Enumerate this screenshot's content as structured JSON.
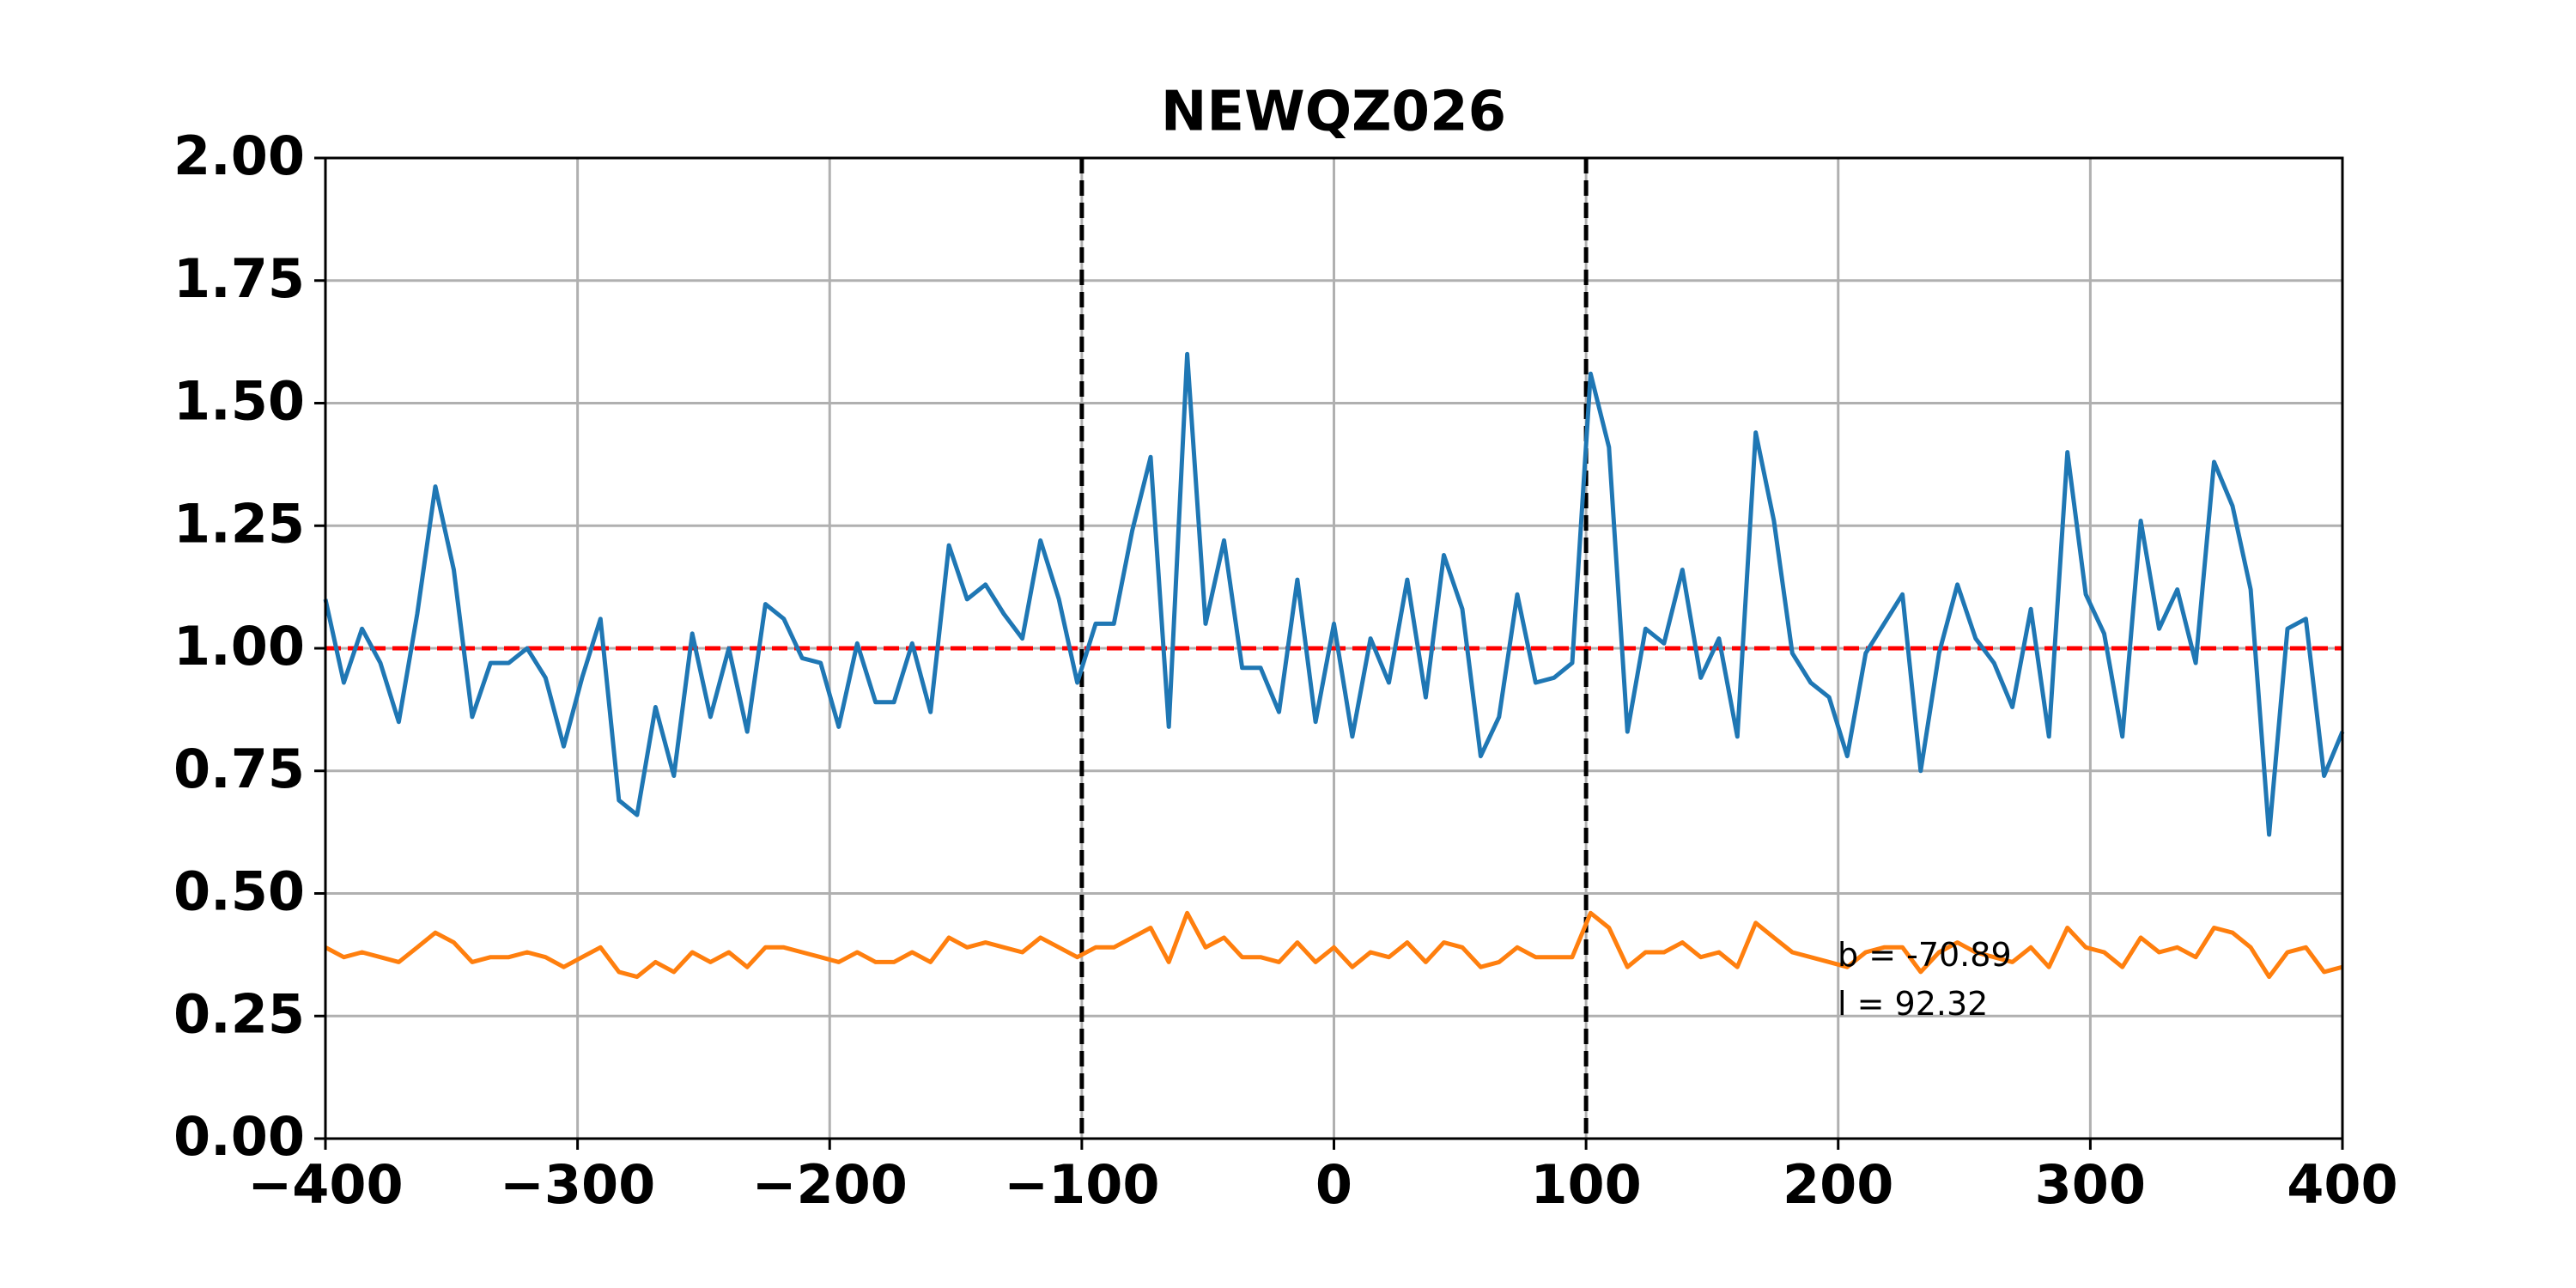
{
  "chart_data": {
    "type": "line",
    "title": "NEWQZ026",
    "x": [
      -400,
      -392.7,
      -385.5,
      -378.2,
      -370.9,
      -363.6,
      -356.4,
      -349.1,
      -341.8,
      -334.5,
      -327.3,
      -320,
      -312.7,
      -305.5,
      -298.2,
      -290.9,
      -283.6,
      -276.4,
      -269.1,
      -261.8,
      -254.5,
      -247.3,
      -240,
      -232.7,
      -225.5,
      -218.2,
      -210.9,
      -203.6,
      -196.4,
      -189.1,
      -181.8,
      -174.5,
      -167.3,
      -160,
      -152.7,
      -145.5,
      -138.2,
      -130.9,
      -123.6,
      -116.4,
      -109.1,
      -101.8,
      -94.5,
      -87.3,
      -80,
      -72.7,
      -65.5,
      -58.2,
      -50.9,
      -43.6,
      -36.4,
      -29.1,
      -21.8,
      -14.5,
      -7.3,
      0,
      7.3,
      14.5,
      21.8,
      29.1,
      36.4,
      43.6,
      50.9,
      58.2,
      65.5,
      72.7,
      80,
      87.3,
      94.5,
      101.8,
      109.1,
      116.4,
      123.6,
      130.9,
      138.2,
      145.5,
      152.7,
      160,
      167.3,
      174.5,
      181.8,
      189.1,
      196.4,
      203.6,
      210.9,
      218.2,
      225.5,
      232.7,
      240,
      247.3,
      254.5,
      261.8,
      269.1,
      276.4,
      283.6,
      290.9,
      298.2,
      305.5,
      312.7,
      320,
      327.3,
      334.5,
      341.8,
      349.1,
      356.4,
      363.6,
      370.9,
      378.2,
      385.5,
      392.7,
      400
    ],
    "series": [
      {
        "color": "#1f77b4",
        "values": [
          1.1,
          0.93,
          1.04,
          0.97,
          0.85,
          1.07,
          1.33,
          1.16,
          0.86,
          0.97,
          0.97,
          1.0,
          0.94,
          0.8,
          0.94,
          1.06,
          0.69,
          0.66,
          0.88,
          0.74,
          1.03,
          0.86,
          1.0,
          0.83,
          1.09,
          1.06,
          0.98,
          0.97,
          0.84,
          1.01,
          0.89,
          0.89,
          1.01,
          0.87,
          1.21,
          1.1,
          1.13,
          1.07,
          1.02,
          1.22,
          1.1,
          0.93,
          1.05,
          1.05,
          1.24,
          1.39,
          0.84,
          1.6,
          1.05,
          1.22,
          0.96,
          0.96,
          0.87,
          1.14,
          0.85,
          1.05,
          0.82,
          1.02,
          0.93,
          1.14,
          0.9,
          1.19,
          1.08,
          0.78,
          0.86,
          1.11,
          0.93,
          0.94,
          0.97,
          1.56,
          1.41,
          0.83,
          1.04,
          1.01,
          1.16,
          0.94,
          1.02,
          0.82,
          1.44,
          1.26,
          0.99,
          0.93,
          0.9,
          0.78,
          0.99,
          1.05,
          1.11,
          0.75,
          0.99,
          1.13,
          1.02,
          0.97,
          0.88,
          1.08,
          0.82,
          1.4,
          1.11,
          1.03,
          0.82,
          1.26,
          1.04,
          1.12,
          0.97,
          1.38,
          1.29,
          1.12,
          0.62,
          1.04,
          1.06,
          0.74,
          0.83
        ]
      },
      {
        "color": "#ff7f0e",
        "values": [
          0.39,
          0.37,
          0.38,
          0.37,
          0.36,
          0.39,
          0.42,
          0.4,
          0.36,
          0.37,
          0.37,
          0.38,
          0.37,
          0.35,
          0.37,
          0.39,
          0.34,
          0.33,
          0.36,
          0.34,
          0.38,
          0.36,
          0.38,
          0.35,
          0.39,
          0.39,
          0.38,
          0.37,
          0.36,
          0.38,
          0.36,
          0.36,
          0.38,
          0.36,
          0.41,
          0.39,
          0.4,
          0.39,
          0.38,
          0.41,
          0.39,
          0.37,
          0.39,
          0.39,
          0.41,
          0.43,
          0.36,
          0.46,
          0.39,
          0.41,
          0.37,
          0.37,
          0.36,
          0.4,
          0.36,
          0.39,
          0.35,
          0.38,
          0.37,
          0.4,
          0.36,
          0.4,
          0.39,
          0.35,
          0.36,
          0.39,
          0.37,
          0.37,
          0.37,
          0.46,
          0.43,
          0.35,
          0.38,
          0.38,
          0.4,
          0.37,
          0.38,
          0.35,
          0.44,
          0.41,
          0.38,
          0.37,
          0.36,
          0.35,
          0.38,
          0.39,
          0.39,
          0.34,
          0.38,
          0.4,
          0.38,
          0.37,
          0.36,
          0.39,
          0.35,
          0.43,
          0.39,
          0.38,
          0.35,
          0.41,
          0.38,
          0.39,
          0.37,
          0.43,
          0.42,
          0.39,
          0.33,
          0.38,
          0.39,
          0.34,
          0.35
        ]
      }
    ],
    "hline": {
      "value": 1,
      "color": "#ff0000"
    },
    "vlines": {
      "values": [
        -100,
        100
      ],
      "color": "#000000"
    },
    "annotations": [
      "b = -70.89",
      "l = 92.32"
    ],
    "xlim": [
      -400,
      400
    ],
    "xticks": [
      {
        "value": -400,
        "label": "−400"
      },
      {
        "value": -300,
        "label": "−300"
      },
      {
        "value": -200,
        "label": "−200"
      },
      {
        "value": -100,
        "label": "−100"
      },
      0,
      100,
      200,
      300,
      400
    ],
    "ylim": [
      0,
      2
    ],
    "yticks": [
      {
        "value": 0,
        "label": "0.00"
      },
      {
        "value": 0.25,
        "label": "0.25"
      },
      {
        "value": 0.5,
        "label": "0.50"
      },
      {
        "value": 0.75,
        "label": "0.75"
      },
      {
        "value": 1,
        "label": "1.00"
      },
      {
        "value": 1.25,
        "label": "1.25"
      },
      {
        "value": 1.5,
        "label": "1.50"
      },
      {
        "value": 1.75,
        "label": "1.75"
      },
      {
        "value": 2,
        "label": "2.00"
      }
    ],
    "grid": true
  }
}
